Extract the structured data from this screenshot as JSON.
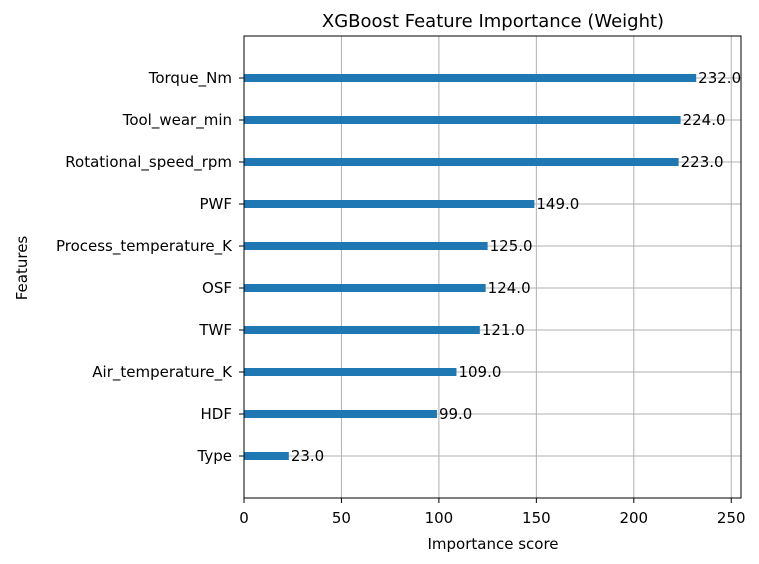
{
  "chart_data": {
    "type": "bar",
    "orientation": "horizontal",
    "title": "XGBoost Feature Importance (Weight)",
    "xlabel": "Importance score",
    "ylabel": "Features",
    "categories": [
      "Type",
      "HDF",
      "Air_temperature_K",
      "TWF",
      "OSF",
      "Process_temperature_K",
      "PWF",
      "Rotational_speed_rpm",
      "Tool_wear_min",
      "Torque_Nm"
    ],
    "values": [
      23.0,
      99.0,
      109.0,
      121.0,
      124.0,
      125.0,
      149.0,
      223.0,
      224.0,
      232.0
    ],
    "data_labels": [
      "23.0",
      "99.0",
      "109.0",
      "121.0",
      "124.0",
      "125.0",
      "149.0",
      "223.0",
      "224.0",
      "232.0"
    ],
    "xlim": [
      0,
      255
    ],
    "xticks": [
      0,
      50,
      100,
      150,
      200,
      250
    ],
    "xtick_labels": [
      "0",
      "50",
      "100",
      "150",
      "200",
      "250"
    ],
    "grid": true,
    "colors": {
      "bar": "#1f77b4",
      "grid": "#b0b0b0",
      "axis": "#000000"
    }
  }
}
